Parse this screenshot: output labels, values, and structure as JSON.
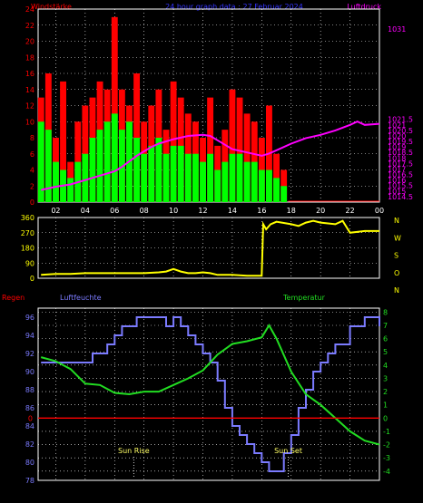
{
  "header": {
    "left_label": "Windstärke",
    "center_label": "24 hour graph data : 27 Februar 2024",
    "right_label": "Luftdruck"
  },
  "colors": {
    "wind_gust": "#ff0000",
    "wind_avg": "#00ff00",
    "pressure": "#ff00ff",
    "direction": "#ffff00",
    "humidity": "#7b7bff",
    "temperature": "#22dd22",
    "rain": "#ff0000",
    "frame": "#ffffff",
    "grid": "#ffffff"
  },
  "chart_data": [
    {
      "type": "bar",
      "panel": "wind_pressure",
      "title": "24 hour graph data : 27 Februar 2024",
      "xlabel": "",
      "ylabel": "Windstärke",
      "y2label": "Luftdruck",
      "xlim": [
        0.8,
        24.0
      ],
      "ylim": [
        0,
        24
      ],
      "y2lim": [
        1014.0,
        1031.5
      ],
      "x_tick_labels": [
        "02",
        "04",
        "06",
        "08",
        "10",
        "12",
        "14",
        "16",
        "18",
        "20",
        "22",
        "00"
      ],
      "y_tick_labels": [
        "0",
        "2",
        "4",
        "6",
        "8",
        "10",
        "12",
        "14",
        "16",
        "18",
        "20",
        "22",
        "24"
      ],
      "y2_tick_labels": [
        "1014.5",
        "1015",
        "1015.5",
        "1016",
        "1016.5",
        "1017",
        "1017.5",
        "1018",
        "1018.5",
        "1019",
        "1019.5",
        "1020",
        "1020.5",
        "1021",
        "1021.5",
        "1031"
      ],
      "grid": true,
      "series": [
        {
          "name": "gust",
          "x": [
            1.0,
            1.5,
            2.0,
            2.5,
            3.0,
            3.5,
            4.0,
            4.5,
            5.0,
            5.5,
            6.0,
            6.5,
            7.0,
            7.5,
            8.0,
            8.5,
            9.0,
            9.5,
            10.0,
            10.5,
            11.0,
            11.5,
            12.0,
            12.5,
            13.0,
            13.5,
            14.0,
            14.5,
            15.0,
            15.5,
            16.0,
            16.5,
            17.0,
            17.5
          ],
          "values": [
            13,
            16,
            8,
            15,
            5,
            10,
            12,
            13,
            15,
            14,
            23,
            14,
            12,
            16,
            10,
            12,
            14,
            9,
            15,
            13,
            11,
            10,
            8,
            13,
            7,
            9,
            14,
            13,
            11,
            10,
            8,
            12,
            6,
            4
          ]
        },
        {
          "name": "average",
          "x": [
            1.0,
            1.5,
            2.0,
            2.5,
            3.0,
            3.5,
            4.0,
            4.5,
            5.0,
            5.5,
            6.0,
            6.5,
            7.0,
            7.5,
            8.0,
            8.5,
            9.0,
            9.5,
            10.0,
            10.5,
            11.0,
            11.5,
            12.0,
            12.5,
            13.0,
            13.5,
            14.0,
            14.5,
            15.0,
            15.5,
            16.0,
            16.5,
            17.0,
            17.5
          ],
          "values": [
            10,
            9,
            5,
            4,
            3,
            5,
            6,
            8,
            9,
            10,
            11,
            9,
            10,
            8,
            6,
            7,
            8,
            6,
            7,
            7,
            6,
            6,
            5,
            6,
            4,
            5,
            6,
            6,
            5,
            5,
            4,
            4,
            3,
            2
          ]
        },
        {
          "name": "pressure",
          "axis": "right",
          "x": [
            1.0,
            2.0,
            3.0,
            4.0,
            5.0,
            6.0,
            6.5,
            7.0,
            7.5,
            8.0,
            8.5,
            9.0,
            10.0,
            11.0,
            12.0,
            12.5,
            13.0,
            13.5,
            14.0,
            15.0,
            16.0,
            16.5,
            17.0,
            18.0,
            19.0,
            20.0,
            21.0,
            22.0,
            22.5,
            23.0,
            24.0
          ],
          "values": [
            1015.1,
            1015.4,
            1015.6,
            1016.0,
            1016.4,
            1016.8,
            1017.2,
            1017.7,
            1018.2,
            1018.6,
            1019.0,
            1019.3,
            1019.7,
            1020.0,
            1020.1,
            1020.0,
            1019.6,
            1019.2,
            1018.8,
            1018.5,
            1018.2,
            1018.4,
            1018.7,
            1019.3,
            1019.8,
            1020.1,
            1020.5,
            1021.0,
            1021.3,
            1021.0,
            1021.1
          ]
        }
      ]
    },
    {
      "type": "line",
      "panel": "wind_direction",
      "ylabel": "",
      "right_labels": [
        "N",
        "W",
        "S",
        "O",
        "N"
      ],
      "xlim": [
        0.8,
        24.0
      ],
      "ylim": [
        0,
        360
      ],
      "y_tick_labels": [
        "0",
        "90",
        "180",
        "270",
        "360"
      ],
      "grid": true,
      "series": [
        {
          "name": "direction",
          "x": [
            1.0,
            2.0,
            3.0,
            4.0,
            5.0,
            6.0,
            7.0,
            8.0,
            9.0,
            9.5,
            10.0,
            10.5,
            11.0,
            11.5,
            12.0,
            12.5,
            13.0,
            14.0,
            15.0,
            16.0,
            16.1,
            16.3,
            16.6,
            17.0,
            18.0,
            18.5,
            19.0,
            19.5,
            20.0,
            21.0,
            21.5,
            22.0,
            23.0,
            24.0
          ],
          "values": [
            20,
            25,
            25,
            30,
            30,
            30,
            30,
            30,
            35,
            40,
            55,
            40,
            30,
            30,
            35,
            30,
            20,
            20,
            15,
            15,
            320,
            290,
            320,
            335,
            320,
            310,
            330,
            340,
            330,
            320,
            340,
            270,
            280,
            280
          ]
        }
      ]
    },
    {
      "type": "line",
      "panel": "humidity_temperature",
      "left_title": "Regen",
      "humidity_title": "Luftfeuchte",
      "temperature_title": "Temperatur",
      "xlim": [
        0.8,
        24.0
      ],
      "ylim": [
        78,
        97
      ],
      "y2lim": [
        -4.7,
        8.3
      ],
      "y_tick_labels": [
        "78",
        "80",
        "82",
        "84",
        "86",
        "88",
        "90",
        "92",
        "94",
        "96"
      ],
      "y2_tick_labels": [
        "-4",
        "-3",
        "-2",
        "-1",
        "0",
        "1",
        "2",
        "3",
        "4",
        "5",
        "6",
        "7",
        "8"
      ],
      "zero_marker": "0",
      "annotations": [
        {
          "text": "Sun Rise",
          "x": 7.3
        },
        {
          "text": "Sun Set",
          "x": 17.8
        }
      ],
      "grid": true,
      "series": [
        {
          "name": "humidity",
          "x": [
            1.0,
            2.0,
            3.0,
            4.0,
            4.5,
            5.0,
            5.5,
            6.0,
            6.5,
            7.0,
            7.5,
            8.0,
            8.5,
            9.0,
            9.5,
            10.0,
            10.5,
            11.0,
            11.5,
            12.0,
            12.5,
            13.0,
            13.5,
            14.0,
            14.5,
            15.0,
            15.5,
            16.0,
            16.5,
            17.0,
            17.5,
            18.0,
            18.5,
            19.0,
            19.5,
            20.0,
            20.5,
            21.0,
            22.0,
            23.0,
            24.0
          ],
          "values": [
            91,
            91,
            91,
            91,
            92,
            92,
            93,
            94,
            95,
            95,
            96,
            96,
            96,
            96,
            95,
            96,
            95,
            94,
            93,
            92,
            91,
            89,
            86,
            84,
            83,
            82,
            81,
            80,
            79,
            79,
            81,
            83,
            86,
            88,
            90,
            91,
            92,
            93,
            95,
            96,
            95
          ]
        },
        {
          "name": "temperature",
          "axis": "right",
          "x": [
            1.0,
            2.0,
            3.0,
            4.0,
            5.0,
            6.0,
            7.0,
            8.0,
            9.0,
            10.0,
            11.0,
            12.0,
            13.0,
            14.0,
            15.0,
            16.0,
            16.5,
            17.0,
            18.0,
            19.0,
            20.0,
            21.0,
            22.0,
            23.0,
            24.0
          ],
          "values": [
            4.6,
            4.3,
            3.7,
            2.6,
            2.5,
            1.9,
            1.8,
            2.0,
            2.0,
            2.5,
            3.0,
            3.6,
            4.8,
            5.6,
            5.8,
            6.1,
            7.0,
            6.0,
            3.5,
            1.8,
            1.0,
            0.0,
            -1.0,
            -1.7,
            -2.0
          ]
        },
        {
          "name": "rain",
          "x": [
            0.8,
            24.0
          ],
          "values": [
            0,
            0
          ]
        }
      ]
    }
  ]
}
